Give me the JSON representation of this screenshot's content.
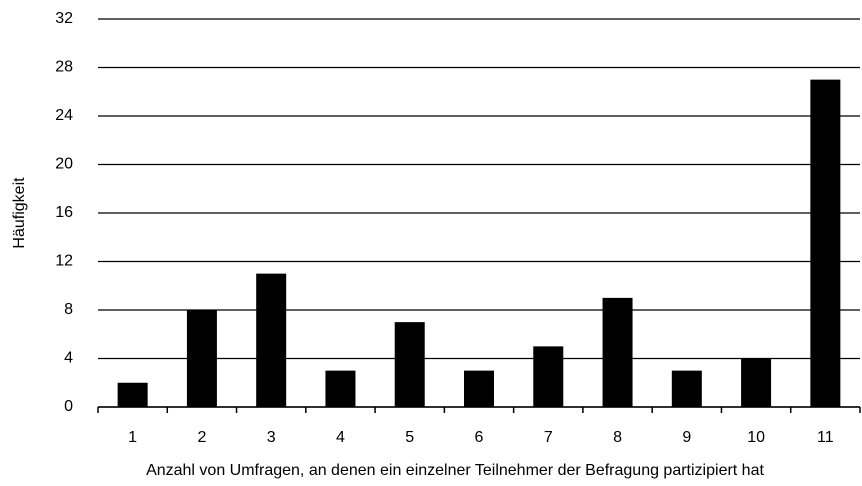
{
  "chart_data": {
    "type": "bar",
    "x_label": "Anzahl von Umfragen, an denen ein einzelner Teilnehmer der Befragung partizipiert hat",
    "y_label": "Häufigkeit",
    "categories": [
      "1",
      "2",
      "3",
      "4",
      "5",
      "6",
      "7",
      "8",
      "9",
      "10",
      "11"
    ],
    "values": [
      2,
      8,
      11,
      3,
      7,
      3,
      5,
      9,
      3,
      4,
      27
    ],
    "color": "#000000",
    "ylim": [
      0,
      32
    ],
    "yticks": [
      0,
      4,
      8,
      12,
      16,
      20,
      24,
      28,
      32
    ],
    "grid": true
  }
}
